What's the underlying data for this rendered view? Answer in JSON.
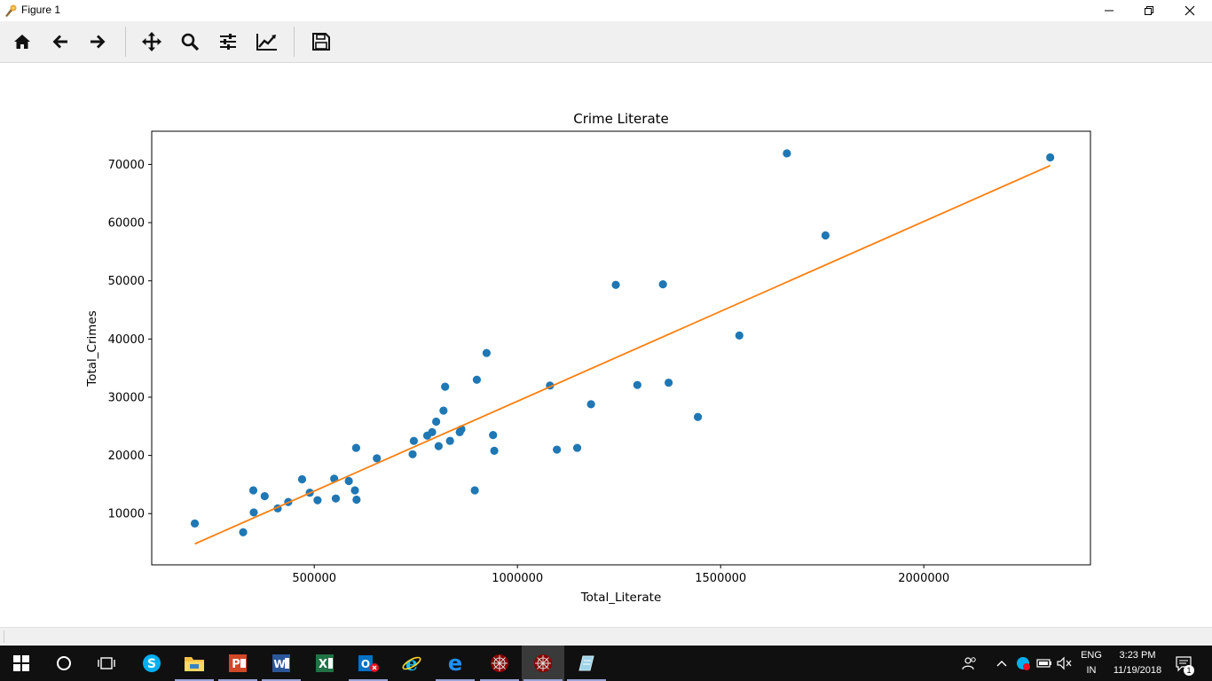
{
  "window": {
    "title": "Figure 1"
  },
  "toolbar": {
    "buttons": [
      "home-icon",
      "back-arrow-icon",
      "forward-arrow-icon",
      "pan-icon",
      "zoom-icon",
      "subplots-icon",
      "edit-curves-icon",
      "save-icon"
    ]
  },
  "chart_data": {
    "type": "scatter",
    "title": "Crime Literate",
    "xlabel": "Total_Literate",
    "ylabel": "Total_Crimes",
    "xlim": [
      100000,
      2410000
    ],
    "ylim": [
      1200,
      75700
    ],
    "x_ticks": [
      500000,
      1000000,
      1500000,
      2000000
    ],
    "y_ticks": [
      10000,
      20000,
      30000,
      40000,
      50000,
      60000,
      70000
    ],
    "x_tick_labels": [
      "500000",
      "1000000",
      "1500000",
      "2000000"
    ],
    "y_tick_labels": [
      "10000",
      "20000",
      "30000",
      "40000",
      "50000",
      "60000",
      "70000"
    ],
    "grid": false,
    "series": [
      {
        "type": "scatter",
        "color": "#1f77b4",
        "points": [
          [
            206000,
            8300
          ],
          [
            325000,
            6800
          ],
          [
            350000,
            14000
          ],
          [
            351000,
            10200
          ],
          [
            378000,
            13000
          ],
          [
            410000,
            10900
          ],
          [
            436000,
            12000
          ],
          [
            470000,
            15900
          ],
          [
            489000,
            13600
          ],
          [
            508000,
            12300
          ],
          [
            549000,
            16000
          ],
          [
            553000,
            12600
          ],
          [
            585000,
            15600
          ],
          [
            600000,
            14000
          ],
          [
            603000,
            21300
          ],
          [
            604000,
            12400
          ],
          [
            654000,
            19500
          ],
          [
            742000,
            20200
          ],
          [
            745000,
            22500
          ],
          [
            778000,
            23400
          ],
          [
            790000,
            24000
          ],
          [
            800000,
            25800
          ],
          [
            806000,
            21600
          ],
          [
            818000,
            27700
          ],
          [
            822000,
            31800
          ],
          [
            834000,
            22500
          ],
          [
            858000,
            24000
          ],
          [
            862000,
            24500
          ],
          [
            895000,
            14000
          ],
          [
            900000,
            33000
          ],
          [
            924000,
            37600
          ],
          [
            940000,
            23500
          ],
          [
            943000,
            20800
          ],
          [
            1080000,
            32000
          ],
          [
            1097000,
            21000
          ],
          [
            1147000,
            21300
          ],
          [
            1181000,
            28800
          ],
          [
            1242000,
            49300
          ],
          [
            1295000,
            32100
          ],
          [
            1358000,
            49400
          ],
          [
            1372000,
            32500
          ],
          [
            1444000,
            26600
          ],
          [
            1546000,
            40600
          ],
          [
            1663000,
            71900
          ],
          [
            1758000,
            57800
          ],
          [
            2311000,
            71200
          ]
        ]
      },
      {
        "type": "line",
        "color": "#ff7f0e",
        "points": [
          [
            206000,
            4800
          ],
          [
            2311000,
            69800
          ]
        ]
      }
    ]
  },
  "taskbar": {
    "apps": [
      "start-icon",
      "cortana-icon",
      "task-view-icon",
      "skype-icon",
      "file-explorer-icon",
      "powerpoint-icon",
      "word-icon",
      "excel-icon",
      "outlook-icon",
      "internet-explorer-icon",
      "edge-icon",
      "spyder-icon",
      "spyder-icon",
      "notepad-icon"
    ],
    "language_top": "ENG",
    "language_bottom": "IN",
    "time": "3:23 PM",
    "date": "11/19/2018",
    "notification_count": "1"
  }
}
